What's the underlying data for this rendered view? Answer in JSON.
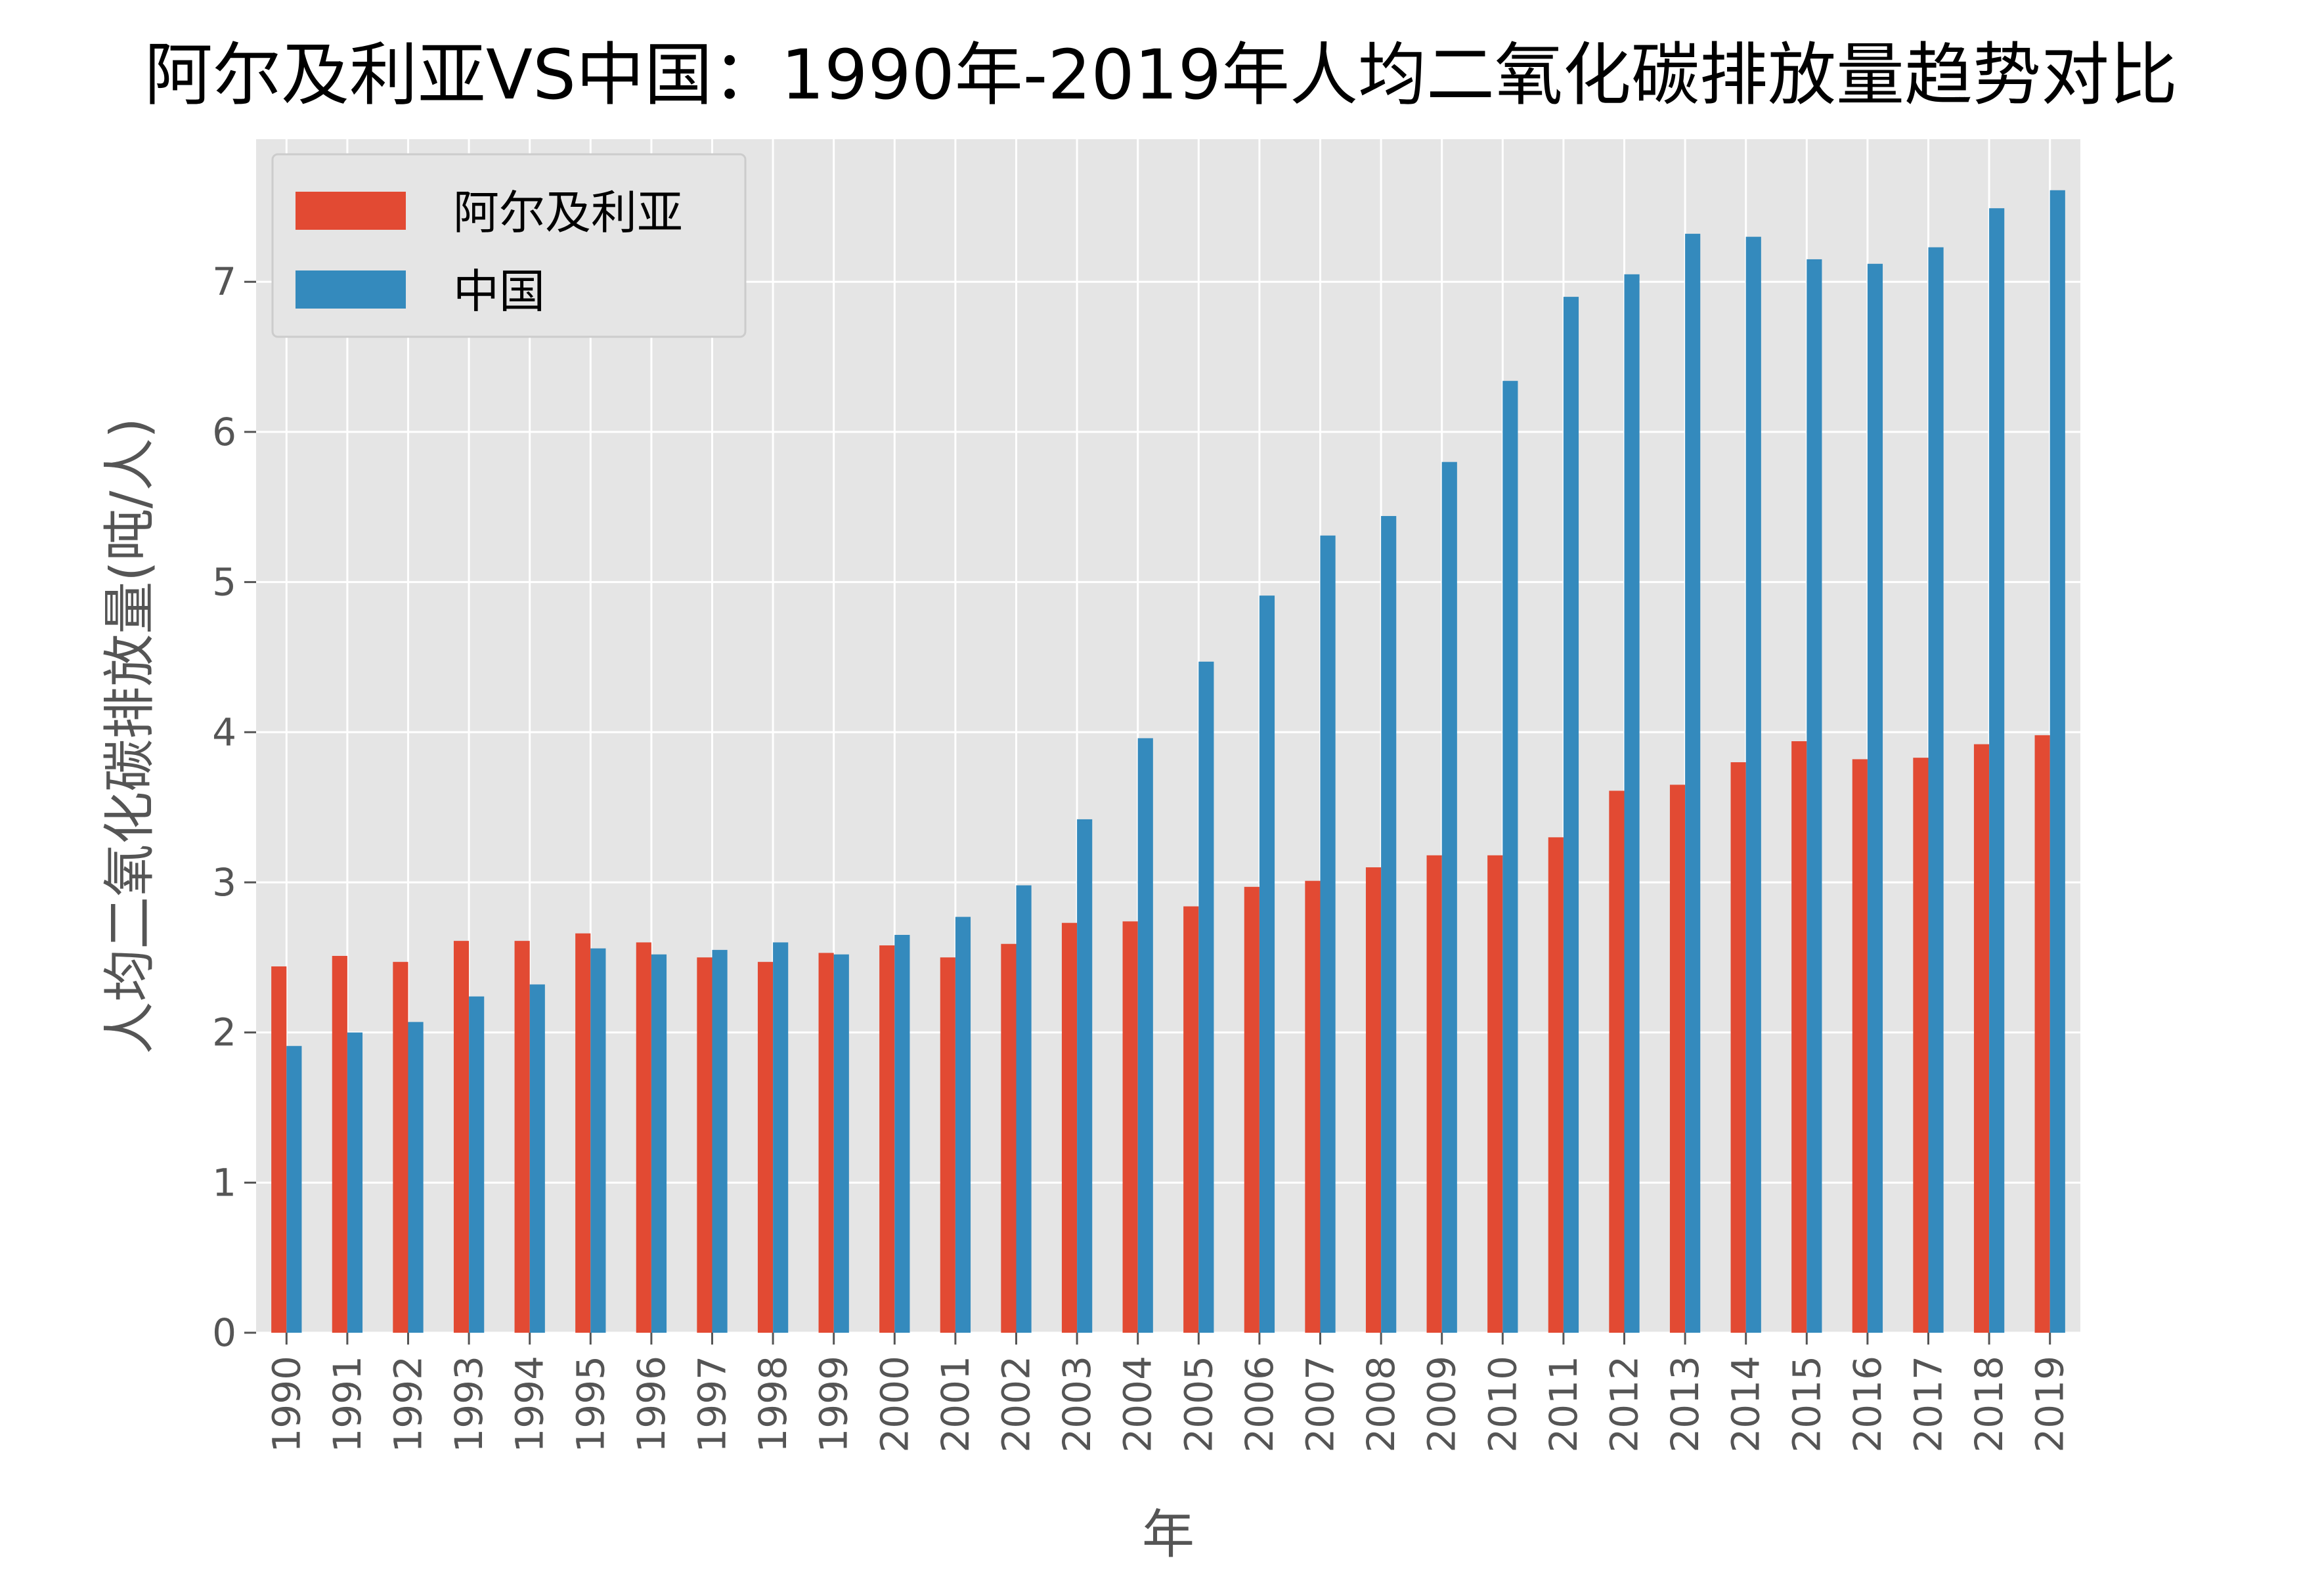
{
  "chart_data": {
    "type": "bar",
    "title": "阿尔及利亚VS中国：1990年-2019年人均二氧化碳排放量趋势对比",
    "xlabel": "年",
    "ylabel": "人均二氧化碳排放量(吨/人)",
    "ylim": [
      0,
      7.95
    ],
    "yticks": [
      0,
      1,
      2,
      3,
      4,
      5,
      6,
      7
    ],
    "grid": true,
    "legend_position": "top-left",
    "categories": [
      "1990",
      "1991",
      "1992",
      "1993",
      "1994",
      "1995",
      "1996",
      "1997",
      "1998",
      "1999",
      "2000",
      "2001",
      "2002",
      "2003",
      "2004",
      "2005",
      "2006",
      "2007",
      "2008",
      "2009",
      "2010",
      "2011",
      "2012",
      "2013",
      "2014",
      "2015",
      "2016",
      "2017",
      "2018",
      "2019"
    ],
    "series": [
      {
        "name": "阿尔及利亚",
        "color": "#E24A33",
        "values": [
          2.44,
          2.51,
          2.47,
          2.61,
          2.61,
          2.66,
          2.6,
          2.5,
          2.47,
          2.53,
          2.58,
          2.5,
          2.59,
          2.73,
          2.74,
          2.84,
          2.97,
          3.01,
          3.1,
          3.18,
          3.18,
          3.3,
          3.61,
          3.65,
          3.8,
          3.94,
          3.82,
          3.83,
          3.92,
          3.98
        ]
      },
      {
        "name": "中国",
        "color": "#348ABD",
        "values": [
          1.91,
          2.0,
          2.07,
          2.24,
          2.32,
          2.56,
          2.52,
          2.55,
          2.6,
          2.52,
          2.65,
          2.77,
          2.98,
          3.42,
          3.96,
          4.47,
          4.91,
          5.31,
          5.44,
          5.8,
          6.34,
          6.9,
          7.05,
          7.32,
          7.3,
          7.15,
          7.12,
          7.23,
          7.49,
          7.61
        ]
      }
    ]
  }
}
